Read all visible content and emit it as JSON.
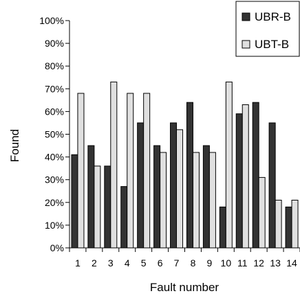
{
  "chart_data": {
    "type": "bar",
    "title": "",
    "xlabel": "Fault number",
    "ylabel": "Found",
    "ylim": [
      0,
      100
    ],
    "yticks": [
      "0%",
      "10%",
      "20%",
      "30%",
      "40%",
      "50%",
      "60%",
      "70%",
      "80%",
      "90%",
      "100%"
    ],
    "categories": [
      "1",
      "2",
      "3",
      "4",
      "5",
      "6",
      "7",
      "8",
      "9",
      "10",
      "11",
      "12",
      "13",
      "14"
    ],
    "legend_position": "top-right",
    "grid": false,
    "series": [
      {
        "name": "UBR-B",
        "color": "#333333",
        "values": [
          41,
          45,
          36,
          27,
          55,
          45,
          55,
          64,
          45,
          18,
          59,
          64,
          55,
          18
        ]
      },
      {
        "name": "UBT-B",
        "color": "#e0e0e0",
        "values": [
          68,
          36,
          73,
          68,
          68,
          42,
          52,
          42,
          42,
          73,
          63,
          31,
          21,
          21
        ]
      }
    ]
  }
}
